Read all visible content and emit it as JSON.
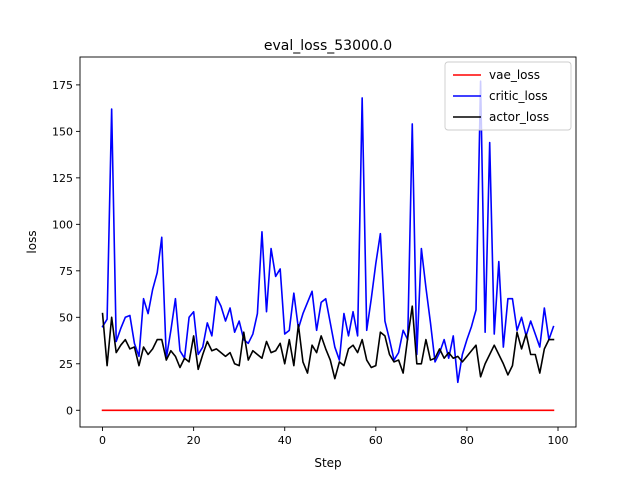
{
  "chart_data": {
    "type": "line",
    "title": "eval_loss_53000.0",
    "xlabel": "Step",
    "ylabel": "loss",
    "xlim": [
      -4.95,
      103.95
    ],
    "ylim": [
      -9.0,
      190.0
    ],
    "xticks": [
      0,
      20,
      40,
      60,
      80,
      100
    ],
    "xtick_labels": [
      "0",
      "20",
      "40",
      "60",
      "80",
      "100"
    ],
    "yticks": [
      0,
      25,
      50,
      75,
      100,
      125,
      150,
      175
    ],
    "ytick_labels": [
      "0",
      "25",
      "50",
      "75",
      "100",
      "125",
      "150",
      "175"
    ],
    "grid": false,
    "legend_position": "top-right",
    "x": [
      0,
      1,
      2,
      3,
      4,
      5,
      6,
      7,
      8,
      9,
      10,
      11,
      12,
      13,
      14,
      15,
      16,
      17,
      18,
      19,
      20,
      21,
      22,
      23,
      24,
      25,
      26,
      27,
      28,
      29,
      30,
      31,
      32,
      33,
      34,
      35,
      36,
      37,
      38,
      39,
      40,
      41,
      42,
      43,
      44,
      45,
      46,
      47,
      48,
      49,
      50,
      51,
      52,
      53,
      54,
      55,
      56,
      57,
      58,
      59,
      60,
      61,
      62,
      63,
      64,
      65,
      66,
      67,
      68,
      69,
      70,
      71,
      72,
      73,
      74,
      75,
      76,
      77,
      78,
      79,
      80,
      81,
      82,
      83,
      84,
      85,
      86,
      87,
      88,
      89,
      90,
      91,
      92,
      93,
      94,
      95,
      96,
      97,
      98,
      99
    ],
    "series": [
      {
        "name": "vae_loss",
        "color": "#ff0000",
        "values": [
          0,
          0,
          0,
          0,
          0,
          0,
          0,
          0,
          0,
          0,
          0,
          0,
          0,
          0,
          0,
          0,
          0,
          0,
          0,
          0,
          0,
          0,
          0,
          0,
          0,
          0,
          0,
          0,
          0,
          0,
          0,
          0,
          0,
          0,
          0,
          0,
          0,
          0,
          0,
          0,
          0,
          0,
          0,
          0,
          0,
          0,
          0,
          0,
          0,
          0,
          0,
          0,
          0,
          0,
          0,
          0,
          0,
          0,
          0,
          0,
          0,
          0,
          0,
          0,
          0,
          0,
          0,
          0,
          0,
          0,
          0,
          0,
          0,
          0,
          0,
          0,
          0,
          0,
          0,
          0,
          0,
          0,
          0,
          0,
          0,
          0,
          0,
          0,
          0,
          0,
          0,
          0,
          0,
          0,
          0,
          0,
          0,
          0,
          0,
          0
        ]
      },
      {
        "name": "critic_loss",
        "color": "#0000ff",
        "values": [
          45,
          49,
          162,
          37,
          44,
          50,
          51,
          36,
          29,
          60,
          52,
          65,
          74,
          93,
          28,
          43,
          60,
          32,
          28,
          50,
          53,
          30,
          34,
          47,
          40,
          61,
          56,
          48,
          55,
          42,
          48,
          38,
          36,
          41,
          52,
          96,
          53,
          87,
          72,
          76,
          41,
          43,
          63,
          44,
          52,
          58,
          64,
          43,
          58,
          60,
          47,
          34,
          27,
          52,
          40,
          53,
          40,
          168,
          43,
          60,
          79,
          95,
          48,
          38,
          27,
          31,
          43,
          38,
          154,
          30,
          87,
          66,
          47,
          26,
          31,
          38,
          28,
          40,
          15,
          30,
          38,
          45,
          54,
          177,
          42,
          144,
          41,
          80,
          34,
          60,
          60,
          43,
          50,
          40,
          48,
          41,
          34,
          55,
          38,
          45
        ]
      },
      {
        "name": "actor_loss",
        "color": "#000000",
        "values": [
          52,
          24,
          50,
          31,
          35,
          38,
          33,
          34,
          24,
          34,
          30,
          33,
          38,
          38,
          27,
          32,
          29,
          23,
          28,
          26,
          40,
          22,
          30,
          37,
          32,
          33,
          31,
          29,
          31,
          25,
          24,
          42,
          27,
          32,
          30,
          28,
          37,
          31,
          32,
          36,
          25,
          38,
          24,
          46,
          26,
          20,
          35,
          31,
          40,
          33,
          27,
          17,
          26,
          24,
          33,
          35,
          31,
          38,
          27,
          23,
          24,
          42,
          40,
          30,
          26,
          27,
          20,
          39,
          56,
          25,
          25,
          38,
          27,
          28,
          33,
          28,
          31,
          28,
          29,
          26,
          29,
          32,
          35,
          18,
          25,
          30,
          35,
          30,
          25,
          19,
          24,
          42,
          33,
          41,
          30,
          30,
          20,
          33,
          38,
          38
        ]
      }
    ]
  }
}
